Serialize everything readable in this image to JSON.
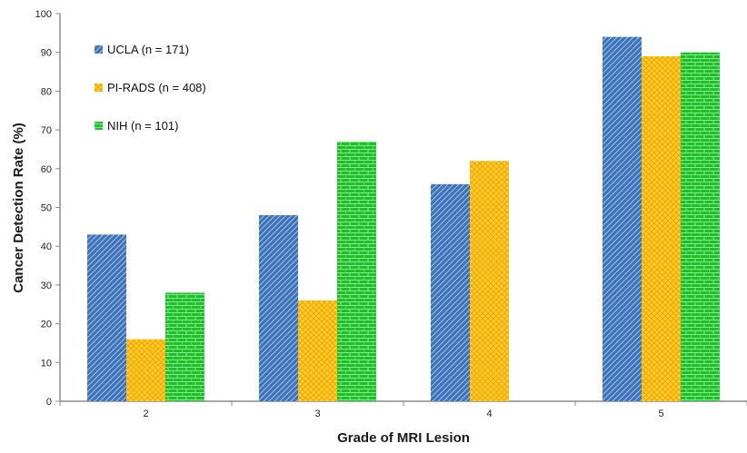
{
  "colors": {
    "ucla_base": "#3d73b8",
    "ucla_line": "#9fbde3",
    "pirads_base": "#ffd11a",
    "pirads_line": "#f2a21c",
    "nih_base": "#1fbf2a",
    "nih_line": "#86e88c",
    "axis": "#8c8c8c"
  },
  "chart_data": {
    "type": "bar",
    "xlabel": "Grade of MRI Lesion",
    "ylabel": "Cancer Detection Rate (%)",
    "categories": [
      "2",
      "3",
      "4",
      "5"
    ],
    "ylim": [
      0,
      100
    ],
    "yticks": [
      0,
      10,
      20,
      30,
      40,
      50,
      60,
      70,
      80,
      90,
      100
    ],
    "grid": false,
    "legend_position": "top-left",
    "series": [
      {
        "name": "UCLA (n = 171)",
        "values": [
          43,
          48,
          56,
          94
        ],
        "color_key": "ucla",
        "pattern": "diagonal stripes"
      },
      {
        "name": "PI-RADS (n = 408)",
        "values": [
          16,
          26,
          62,
          89
        ],
        "color_key": "pirads",
        "pattern": "crosshatch"
      },
      {
        "name": "NIH (n = 101)",
        "values": [
          28,
          67,
          null,
          90
        ],
        "color_key": "nih",
        "pattern": "brick"
      }
    ]
  }
}
